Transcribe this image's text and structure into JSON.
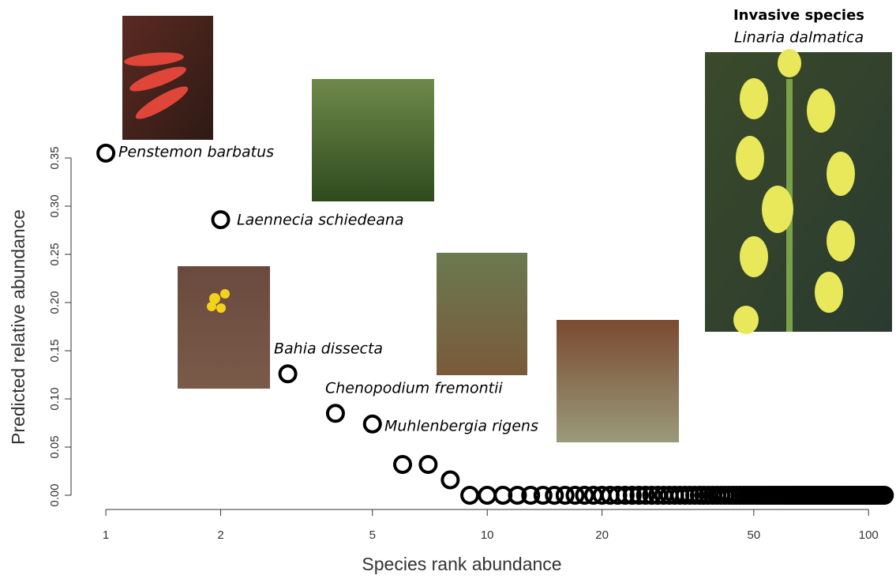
{
  "chart_data": {
    "type": "scatter",
    "xlabel": "Species rank abundance",
    "ylabel": "Predicted relative abundance",
    "x": [
      1,
      2,
      3,
      4,
      5,
      6,
      7,
      8,
      9,
      10,
      11,
      12,
      13,
      14,
      15,
      16,
      17,
      18,
      19,
      20,
      21,
      22,
      23,
      24,
      25,
      26,
      27,
      28,
      29,
      30,
      31,
      32,
      33,
      34,
      35,
      36,
      37,
      38,
      39,
      40,
      41,
      42,
      43,
      44,
      45,
      46,
      47,
      48,
      49,
      50,
      51,
      52,
      53,
      54,
      55,
      56,
      57,
      58,
      59,
      60,
      61,
      62,
      63,
      64,
      65,
      66,
      67,
      68,
      69,
      70,
      71,
      72,
      73,
      74,
      75,
      76,
      77,
      78,
      79,
      80,
      81,
      82,
      83,
      84,
      85,
      86,
      87,
      88,
      89,
      90,
      91,
      92,
      93,
      94,
      95,
      96,
      97,
      98,
      99,
      100,
      101,
      102,
      103,
      104,
      105,
      106,
      107,
      108,
      109,
      110
    ],
    "values": [
      0.355,
      0.286,
      0.126,
      0.085,
      0.074,
      0.032,
      0.032,
      0.016,
      0,
      0,
      0,
      0,
      0,
      0,
      0,
      0,
      0,
      0,
      0,
      0,
      0,
      0,
      0,
      0,
      0,
      0,
      0,
      0,
      0,
      0,
      0,
      0,
      0,
      0,
      0,
      0,
      0,
      0,
      0,
      0,
      0,
      0,
      0,
      0,
      0,
      0,
      0,
      0,
      0,
      0,
      0,
      0,
      0,
      0,
      0,
      0,
      0,
      0,
      0,
      0,
      0,
      0,
      0,
      0,
      0,
      0,
      0,
      0,
      0,
      0,
      0,
      0,
      0,
      0,
      0,
      0,
      0,
      0,
      0,
      0,
      0,
      0,
      0,
      0,
      0,
      0,
      0,
      0,
      0,
      0,
      0,
      0,
      0,
      0,
      0,
      0,
      0,
      0,
      0,
      0,
      0,
      0,
      0,
      0,
      0,
      0,
      0,
      0,
      0,
      0
    ],
    "color": "#000000",
    "xlog": true,
    "xlim": [
      0.85,
      118
    ],
    "ylim": [
      0,
      0.35
    ],
    "xticks": [
      1,
      2,
      5,
      10,
      20,
      50,
      100
    ],
    "yticks": [
      {
        "value": 0,
        "label": "0.00"
      },
      {
        "value": 0.05,
        "label": "0.05"
      },
      {
        "value": 0.1,
        "label": "0.10"
      },
      {
        "value": 0.15,
        "label": "0.15"
      },
      {
        "value": 0.2,
        "label": "0.20"
      },
      {
        "value": 0.25,
        "label": "0.25"
      },
      {
        "value": 0.3,
        "label": "0.30"
      },
      {
        "value": 0.35,
        "label": "0.35"
      }
    ],
    "annotations": [
      "Penstemon barbatus",
      "Laennecia schiedeana",
      "Bahia dissecta",
      "Chenopodium fremontii",
      "Muhlenbergia rigens",
      "Invasive species",
      "Linaria dalmatica"
    ]
  }
}
